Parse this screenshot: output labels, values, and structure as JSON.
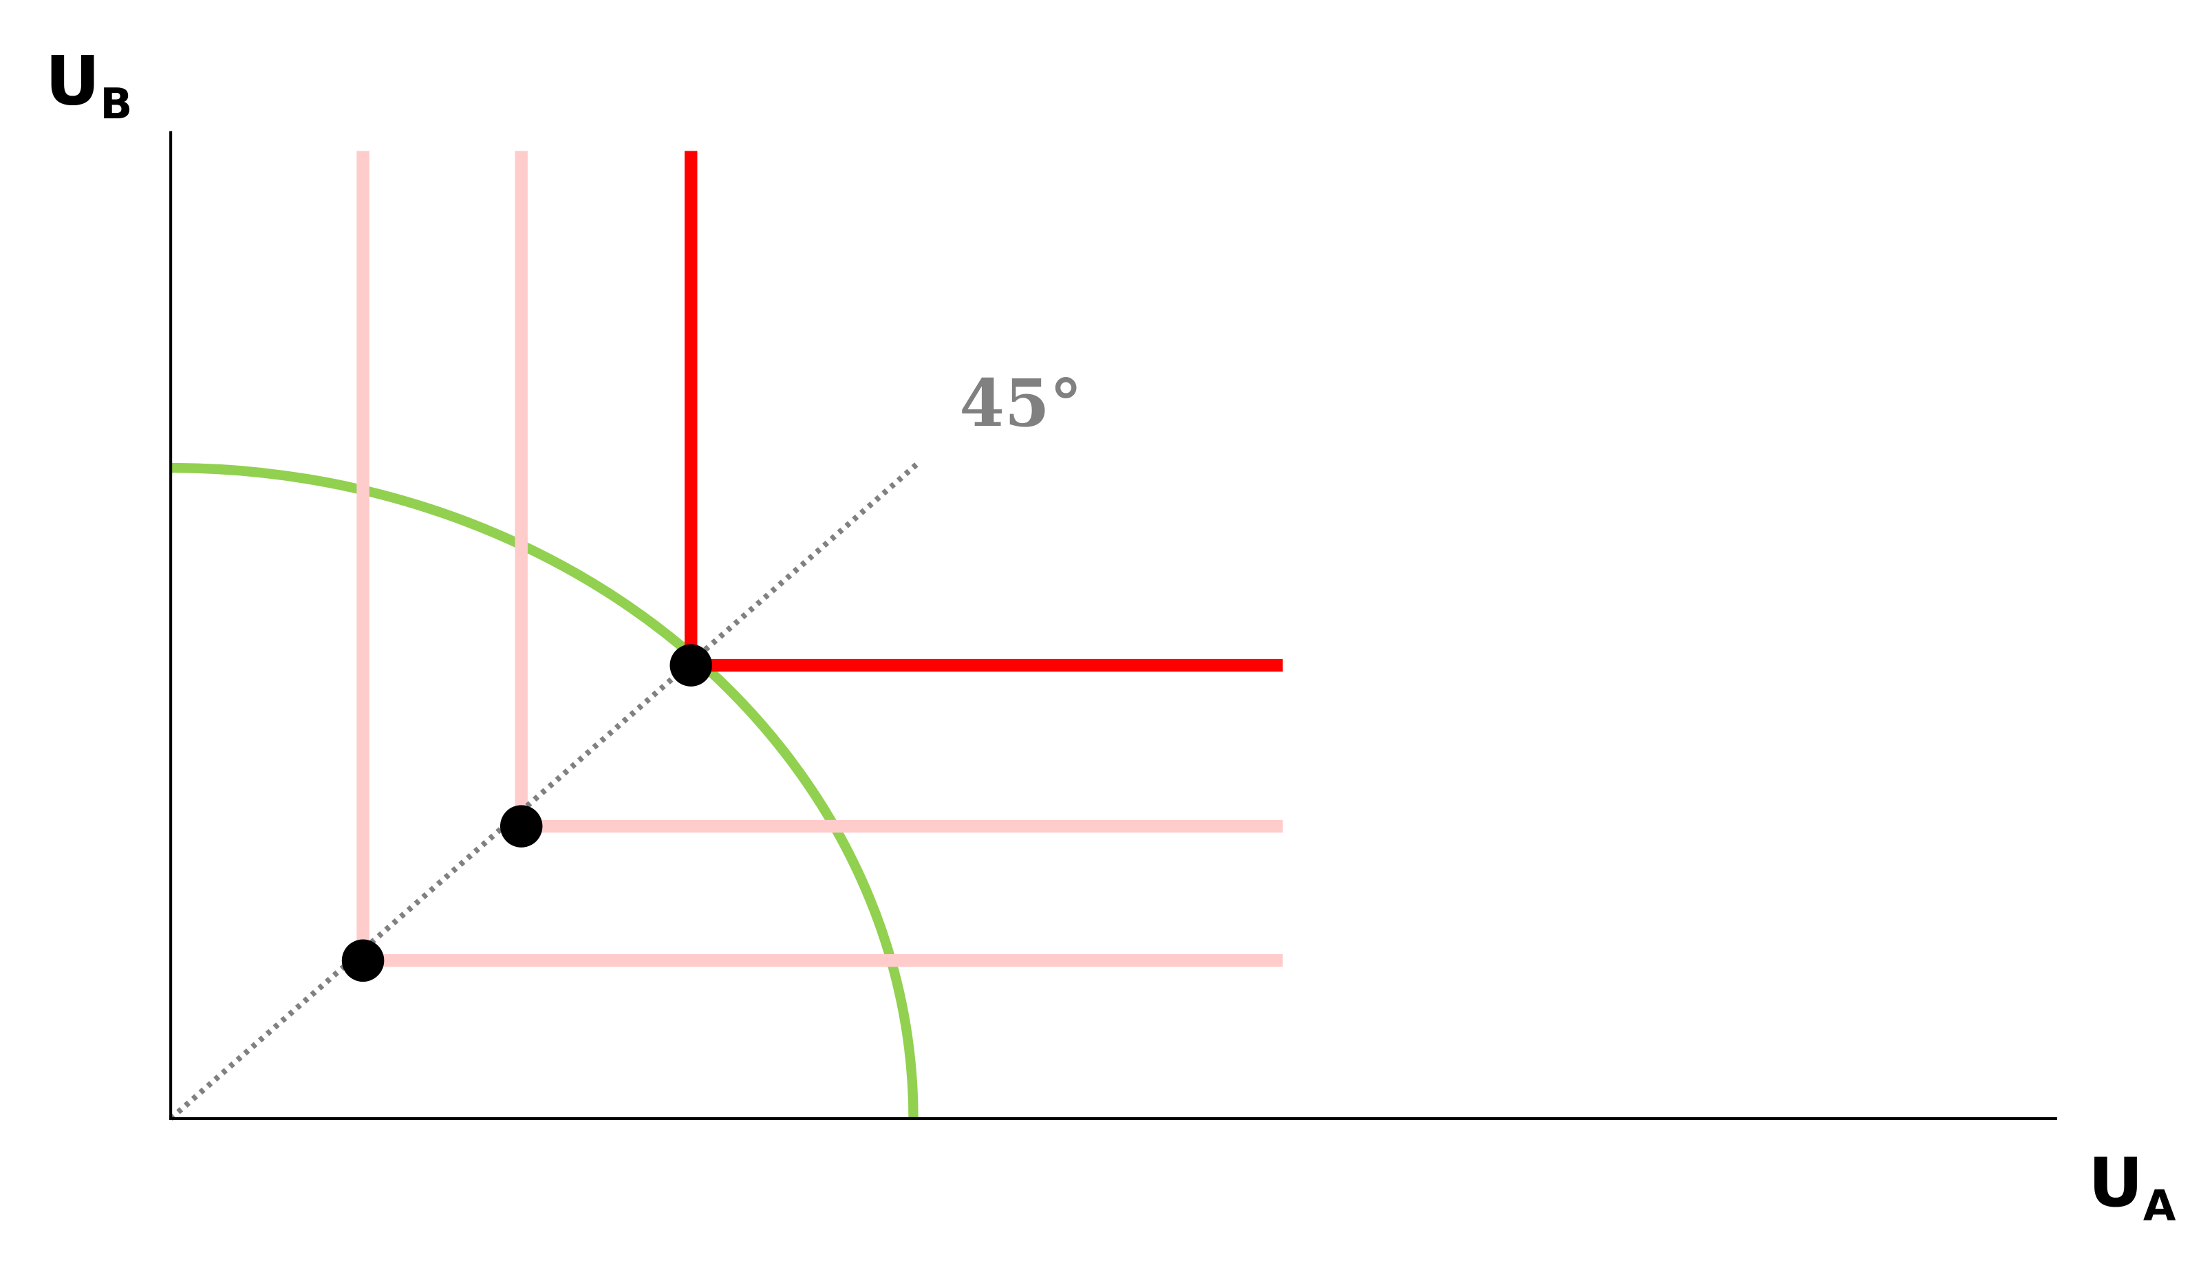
{
  "chart_data": {
    "type": "line",
    "title": "",
    "xlabel": {
      "main": "U",
      "sub": "A"
    },
    "ylabel": {
      "main": "U",
      "sub": "B"
    },
    "xlim": [
      0,
      10
    ],
    "ylim": [
      0,
      10
    ],
    "grid": false,
    "angle_label": "45°",
    "diagonal": {
      "from": [
        0,
        0
      ],
      "to": [
        3.96,
        6.63
      ],
      "color": "#808080",
      "style": "dotted"
    },
    "frontier": {
      "x_intercept": 3.94,
      "y_intercept": 6.59,
      "color": "#92d050"
    },
    "corners": [
      {
        "x": 1.02,
        "y": 1.6,
        "color": "#ffcccc"
      },
      {
        "x": 1.86,
        "y": 2.96,
        "color": "#ffcccc"
      },
      {
        "x": 2.76,
        "y": 4.59,
        "color": "#ff0000"
      }
    ],
    "corner_extent": {
      "x_end": 5.9,
      "y_end": 9.8
    },
    "point_color": "#000000"
  }
}
